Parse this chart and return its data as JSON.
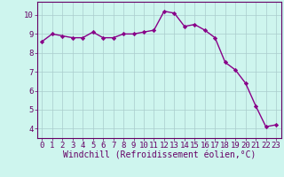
{
  "x": [
    0,
    1,
    2,
    3,
    4,
    5,
    6,
    7,
    8,
    9,
    10,
    11,
    12,
    13,
    14,
    15,
    16,
    17,
    18,
    19,
    20,
    21,
    22,
    23
  ],
  "y": [
    8.6,
    9.0,
    8.9,
    8.8,
    8.8,
    9.1,
    8.8,
    8.8,
    9.0,
    9.0,
    9.1,
    9.2,
    10.2,
    10.1,
    9.4,
    9.5,
    9.2,
    8.8,
    7.5,
    7.1,
    6.4,
    5.2,
    4.1,
    4.2
  ],
  "line_color": "#880088",
  "marker": "D",
  "marker_size": 2.2,
  "bg_color": "#cef5ee",
  "grid_color": "#aacccc",
  "xlabel": "Windchill (Refroidissement éolien,°C)",
  "xlim": [
    -0.5,
    23.5
  ],
  "ylim": [
    3.5,
    10.7
  ],
  "yticks": [
    4,
    5,
    6,
    7,
    8,
    9,
    10
  ],
  "xticks": [
    0,
    1,
    2,
    3,
    4,
    5,
    6,
    7,
    8,
    9,
    10,
    11,
    12,
    13,
    14,
    15,
    16,
    17,
    18,
    19,
    20,
    21,
    22,
    23
  ],
  "tick_color": "#660066",
  "axis_color": "#660066",
  "font_size": 6.5,
  "xlabel_fontsize": 7.0,
  "linewidth": 1.0
}
